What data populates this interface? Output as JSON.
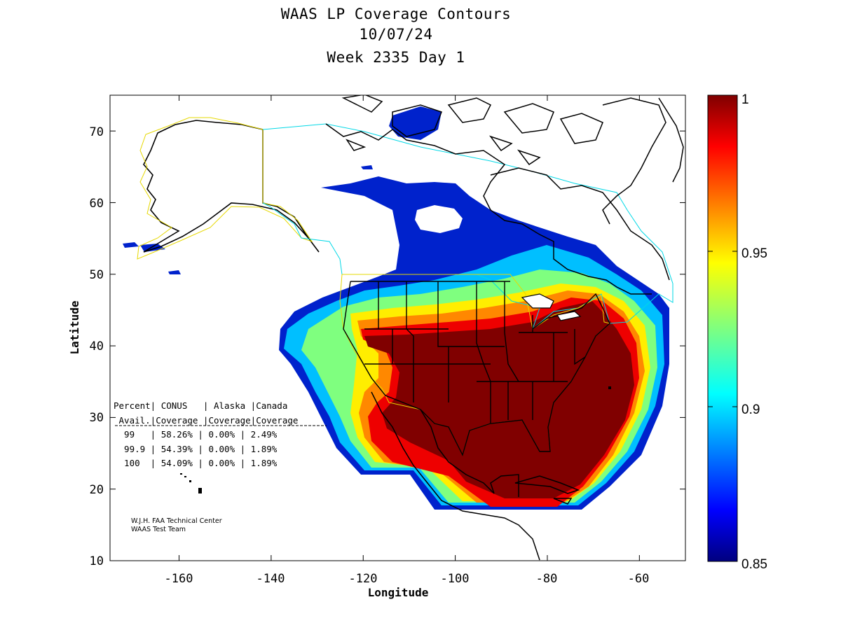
{
  "title": {
    "line1": "WAAS LP Coverage Contours",
    "line2": "10/07/24",
    "line3": "Week 2335 Day 1"
  },
  "axes": {
    "xlabel": "Longitude",
    "ylabel": "Latitude",
    "xticks": [
      "-160",
      "-140",
      "-120",
      "-100",
      "-80",
      "-60"
    ],
    "yticks": [
      "10",
      "20",
      "30",
      "40",
      "50",
      "60",
      "70"
    ],
    "xlim": [
      -175,
      -50
    ],
    "ylim": [
      10,
      75
    ]
  },
  "colorbar": {
    "colormap": "jet",
    "ticks": [
      "1",
      "0.95",
      "0.9",
      "0.85"
    ],
    "range": [
      0.85,
      1.0
    ]
  },
  "stats_table": {
    "header1": "Percent| CONUS   | Alaska |Canada",
    "header2": " Avail.|Coverage |Coverage|Coverage",
    "rows": [
      "  99   | 58.26% | 0.00% | 2.49%",
      "  99.9 | 54.39% | 0.00% | 1.89%",
      "  100  | 54.09% | 0.00% | 1.89%"
    ]
  },
  "credit": {
    "line1": "W.J.H. FAA Technical Center",
    "line2": "WAAS Test Team"
  },
  "colors": {
    "high": "#800000",
    "mid": "#ffff00",
    "low": "#00007f",
    "alaska_boundary": "#e6d800",
    "canada_boundary": "#00d8e6",
    "conus_boundary": "#e6d800"
  }
}
